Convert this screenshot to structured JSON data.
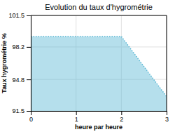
{
  "chart_data": {
    "type": "area",
    "title": "Evolution du taux d'hygrométrie",
    "xlabel": "heure par heure",
    "ylabel": "Taux hygrométrie %",
    "x": [
      0,
      1,
      2,
      3
    ],
    "values": [
      99.3,
      99.3,
      99.3,
      93.0
    ],
    "xlim": [
      0,
      3
    ],
    "ylim": [
      91.5,
      101.5
    ],
    "xticks": [
      0,
      1,
      2,
      3
    ],
    "yticks": [
      91.5,
      94.8,
      98.2,
      101.5
    ],
    "color": "#5bb8d4",
    "line_style": "dotted",
    "grid": true
  }
}
